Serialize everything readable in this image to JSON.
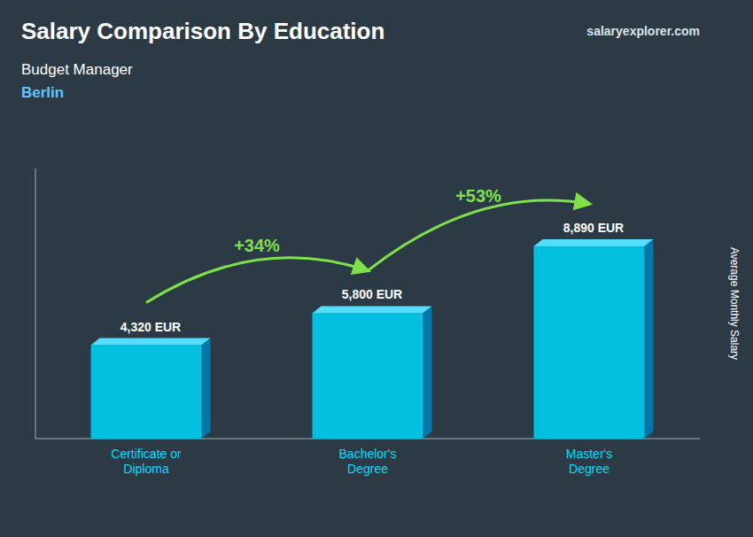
{
  "chart_data": {
    "type": "bar",
    "title": "Salary Comparison By Education",
    "subtitle": [
      "Budget Manager",
      "Berlin"
    ],
    "source": "salaryexplorer.com",
    "ylabel": "Average Monthly Salary",
    "categories": [
      "Certificate or\nDiploma",
      "Bachelor's\nDegree",
      "Master's\nDegree"
    ],
    "values": [
      4320,
      5800,
      8890
    ],
    "value_labels": [
      "4,320 EUR",
      "5,800 EUR",
      "8,890 EUR"
    ],
    "data_labels": true,
    "annotations": [
      "+34%",
      "+53%"
    ],
    "color": "#00bfdf",
    "ylim": [
      0,
      12500
    ],
    "yticks": [],
    "tick_labels": "x"
  }
}
